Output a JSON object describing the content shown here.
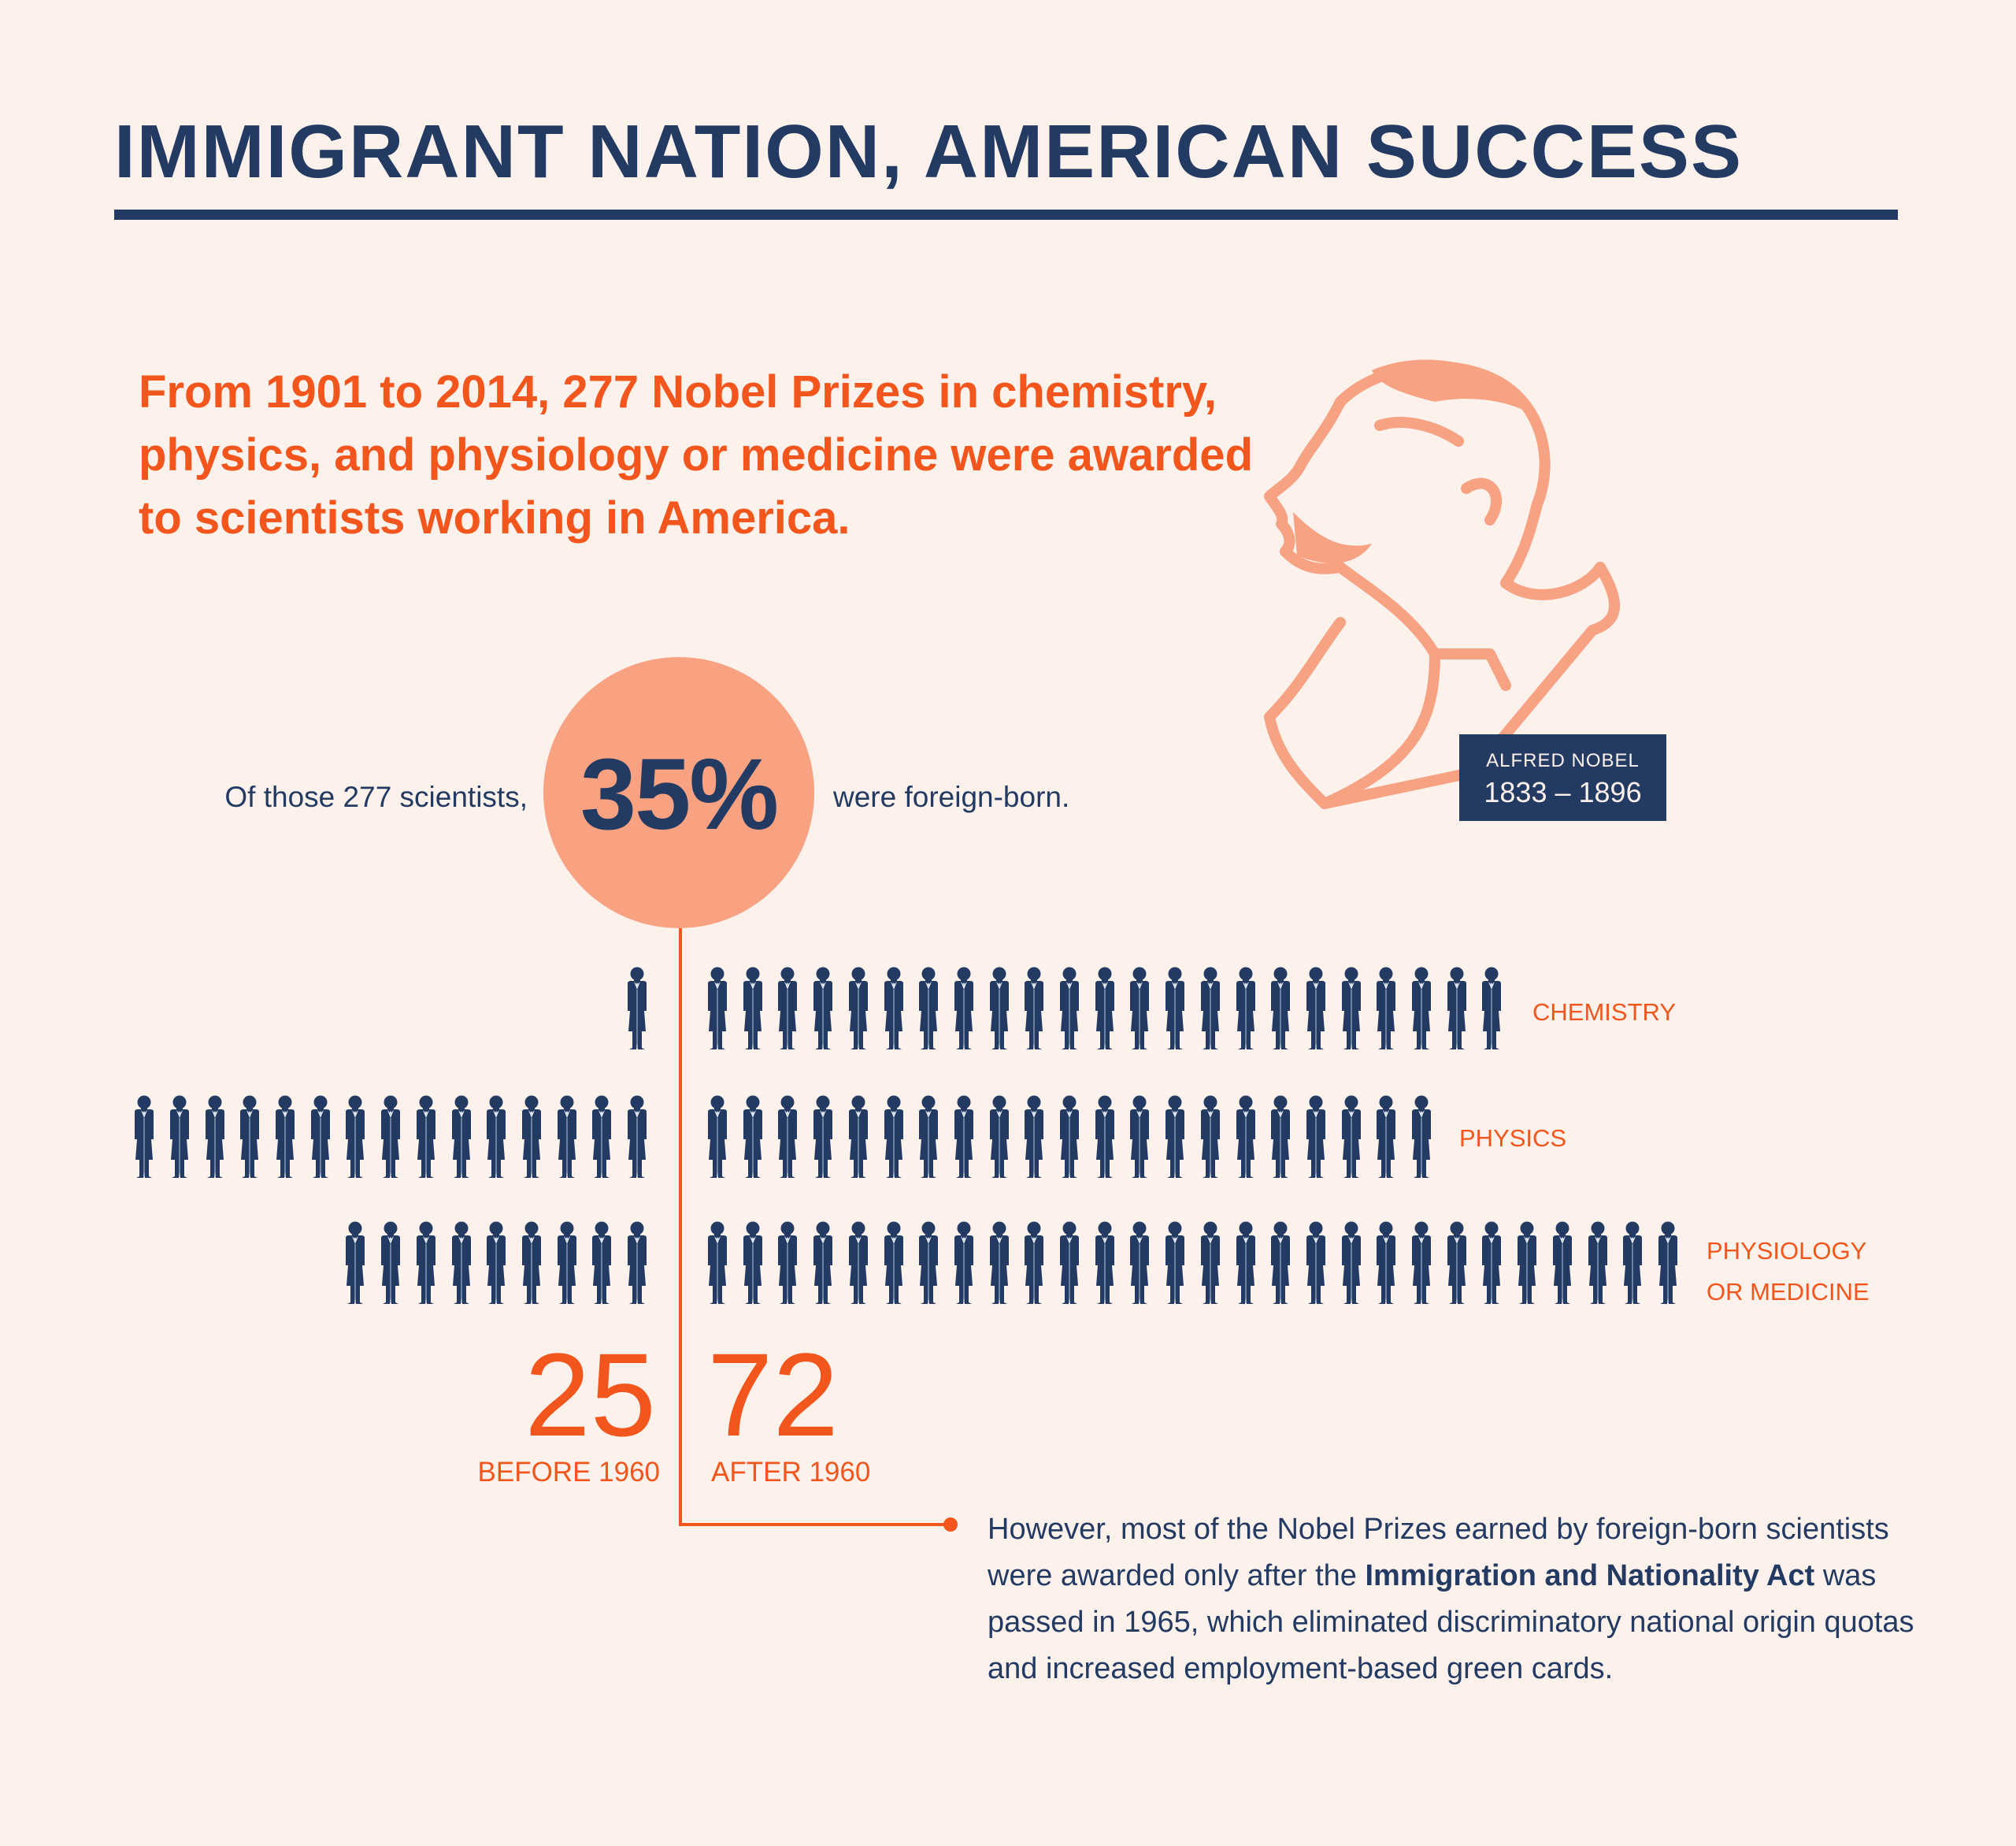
{
  "title": "IMMIGRANT NATION, AMERICAN SUCCESS",
  "intro": "From 1901 to 2014, 277 Nobel Prizes in chemistry, physics, and physiology or medicine were awarded to scientists working in America.",
  "stat": {
    "prefix": "Of those 277 scientists,",
    "percent": "35%",
    "suffix": "were foreign-born."
  },
  "nobel_label": {
    "name": "ALFRED NOBEL",
    "years": "1833 – 1896"
  },
  "categories": [
    {
      "label": "CHEMISTRY",
      "before_1960": 1,
      "after_1960": 23
    },
    {
      "label": "PHYSICS",
      "before_1960": 15,
      "after_1960": 21
    },
    {
      "label_line1": "PHYSIOLOGY",
      "label_line2": "OR MEDICINE",
      "before_1960": 9,
      "after_1960": 28
    }
  ],
  "totals": {
    "before": "25",
    "before_label": "BEFORE 1960",
    "after": "72",
    "after_label": "AFTER 1960"
  },
  "note": {
    "part1": "However, most of the Nobel Prizes earned by foreign-born scientists were awarded only after the",
    "bold": "Immigration and Nationality Act",
    "part2": "was passed in 1965, which eliminated discriminatory national origin quotas and increased employment-based green cards."
  },
  "colors": {
    "background": "#fdf1ec",
    "navy": "#233a63",
    "orange": "#f2561d",
    "peach": "#f9a282"
  }
}
